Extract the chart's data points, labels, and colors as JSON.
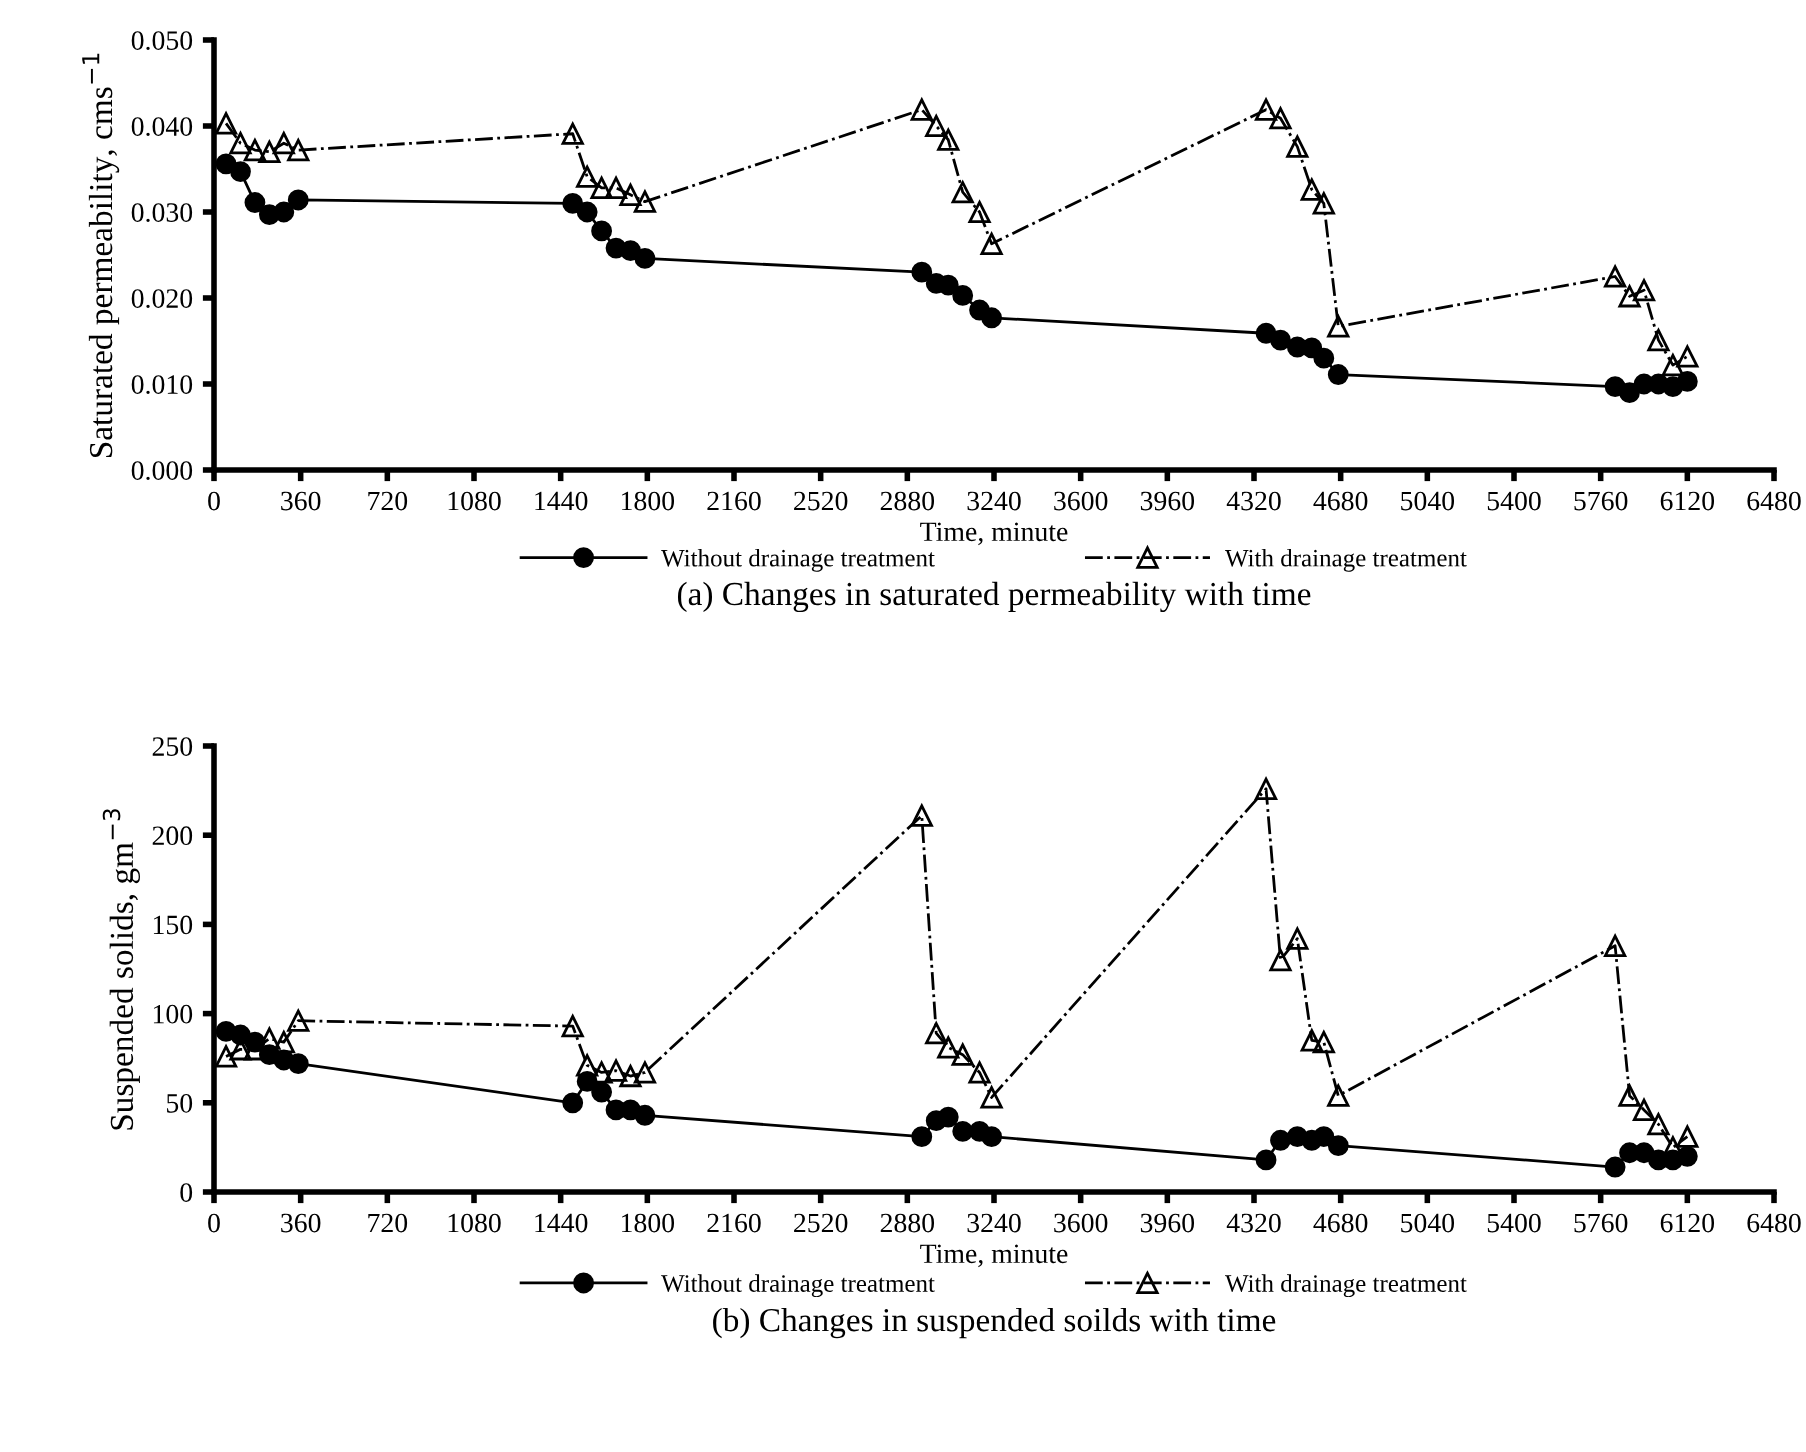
{
  "chart_data": [
    {
      "type": "line",
      "xlabel": "Time, minute",
      "ylabel": "Saturated permeability, cms$^{−1}$",
      "legend": "bottom",
      "annotations": [
        "(a) Changes in saturated permeability with time"
      ],
      "xlim": [
        0,
        6480
      ],
      "xticks": [
        0,
        360,
        720,
        1080,
        1440,
        1800,
        2160,
        2520,
        2880,
        3240,
        3600,
        3960,
        4320,
        4680,
        5040,
        5400,
        5760,
        6120,
        6480
      ],
      "ylim": [
        0,
        0.05
      ],
      "yticks": [
        {
          "value": 0,
          "label": "0.000"
        },
        {
          "value": 0.01,
          "label": "0.010"
        },
        {
          "value": 0.02,
          "label": "0.020"
        },
        {
          "value": 0.03,
          "label": "0.030"
        },
        {
          "value": 0.04,
          "label": "0.040"
        },
        {
          "value": 0.05,
          "label": "0.050"
        }
      ],
      "x": [
        50,
        110,
        170,
        230,
        290,
        350,
        1490,
        1550,
        1610,
        1670,
        1730,
        1790,
        2940,
        3000,
        3050,
        3110,
        3180,
        3230,
        4370,
        4430,
        4500,
        4560,
        4610,
        4670,
        5820,
        5880,
        5940,
        6000,
        6060,
        6120
      ],
      "series": [
        {
          "name": "Without drainage treatment",
          "color": "#000000",
          "marker": "circle",
          "line_style": "solid",
          "values": [
            0.0356,
            0.0347,
            0.0311,
            0.0297,
            0.03,
            0.0314,
            0.031,
            0.03,
            0.0278,
            0.0258,
            0.0255,
            0.0246,
            0.023,
            0.0217,
            0.0215,
            0.0203,
            0.0186,
            0.0177,
            0.0159,
            0.0151,
            0.0143,
            0.0142,
            0.013,
            0.0111,
            0.0097,
            0.009,
            0.01,
            0.01,
            0.0097,
            0.0103
          ]
        },
        {
          "name": "With drainage treatment",
          "color": "#000000",
          "marker": "triangle",
          "line_style": "dashdot",
          "values": [
            0.0403,
            0.038,
            0.0372,
            0.037,
            0.038,
            0.0372,
            0.0391,
            0.0341,
            0.0328,
            0.0328,
            0.032,
            0.0312,
            0.0419,
            0.04,
            0.0384,
            0.0323,
            0.03,
            0.0263,
            0.0419,
            0.0409,
            0.0376,
            0.0326,
            0.031,
            0.0167,
            0.0225,
            0.0202,
            0.0209,
            0.0151,
            0.0122,
            0.0132
          ]
        }
      ]
    },
    {
      "type": "line",
      "xlabel": "Time, minute",
      "ylabel": "Suspended solids, gm$^{−3}$",
      "legend": "bottom",
      "annotations": [
        "(b) Changes in suspended soilds with time"
      ],
      "xlim": [
        0,
        6480
      ],
      "xticks": [
        0,
        360,
        720,
        1080,
        1440,
        1800,
        2160,
        2520,
        2880,
        3240,
        3600,
        3960,
        4320,
        4680,
        5040,
        5400,
        5760,
        6120,
        6480
      ],
      "ylim": [
        0,
        250
      ],
      "yticks": [
        0,
        50,
        100,
        150,
        200,
        250
      ],
      "x": [
        50,
        110,
        170,
        230,
        290,
        350,
        1490,
        1550,
        1610,
        1670,
        1730,
        1790,
        2940,
        3000,
        3050,
        3110,
        3180,
        3230,
        4370,
        4430,
        4500,
        4560,
        4610,
        4670,
        5820,
        5880,
        5940,
        6000,
        6060,
        6120
      ],
      "series": [
        {
          "name": "Without drainage treatment",
          "color": "#000000",
          "marker": "circle",
          "line_style": "solid",
          "values": [
            90,
            88,
            84,
            77,
            74,
            72,
            50,
            62,
            56,
            46,
            46,
            43,
            31,
            40,
            42,
            34,
            34,
            31,
            18,
            29,
            31,
            29,
            31,
            26,
            14,
            22,
            22,
            18,
            18,
            20
          ]
        },
        {
          "name": "With drainage treatment",
          "color": "#000000",
          "marker": "triangle",
          "line_style": "dashdot",
          "values": [
            76,
            80,
            80,
            86,
            84,
            96,
            93,
            71,
            67,
            68,
            65,
            67,
            211,
            89,
            81,
            77,
            67,
            53,
            226,
            130,
            142,
            85,
            84,
            54,
            138,
            54,
            46,
            38,
            25,
            31
          ]
        }
      ]
    }
  ]
}
